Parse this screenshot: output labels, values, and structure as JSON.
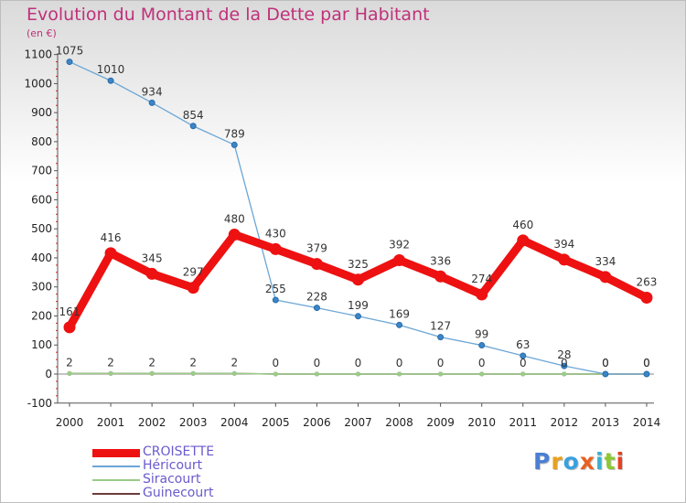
{
  "chart_data": {
    "type": "line",
    "title": "Evolution du Montant de la Dette par Habitant",
    "unit_label": "(en €)",
    "categories": [
      "2000",
      "2001",
      "2002",
      "2003",
      "2004",
      "2005",
      "2006",
      "2007",
      "2008",
      "2009",
      "2010",
      "2011",
      "2012",
      "2013",
      "2014"
    ],
    "ylim": [
      -100,
      1100
    ],
    "yticks": [
      -100,
      0,
      100,
      200,
      300,
      400,
      500,
      600,
      700,
      800,
      900,
      1000,
      1100
    ],
    "grid": false,
    "legend_position": "bottom-left",
    "series": [
      {
        "name": "CROISETTE",
        "color": "#ee1111",
        "values": [
          161,
          416,
          345,
          297,
          480,
          430,
          379,
          325,
          392,
          336,
          274,
          460,
          394,
          334,
          263
        ]
      },
      {
        "name": "Héricourt",
        "color": "#6ba6d6",
        "values": [
          1075,
          1010,
          934,
          854,
          789,
          255,
          228,
          199,
          169,
          127,
          99,
          63,
          28,
          0,
          0
        ]
      },
      {
        "name": "Siracourt",
        "color": "#99cc88",
        "values": [
          2,
          2,
          2,
          2,
          2,
          0,
          0,
          0,
          0,
          0,
          0,
          0,
          0,
          0,
          0
        ]
      },
      {
        "name": "Guinecourt",
        "color": "#6b3b3b",
        "values": [
          2,
          2,
          2,
          2,
          2,
          0,
          0,
          0,
          0,
          0,
          0,
          0,
          0,
          0,
          0
        ]
      }
    ]
  },
  "logo": {
    "text": "Proxiti",
    "colors": [
      "#4a7fd4",
      "#e8a020",
      "#3aa0e0",
      "#e86020",
      "#3ab0d0",
      "#8cc832",
      "#e84020"
    ]
  }
}
